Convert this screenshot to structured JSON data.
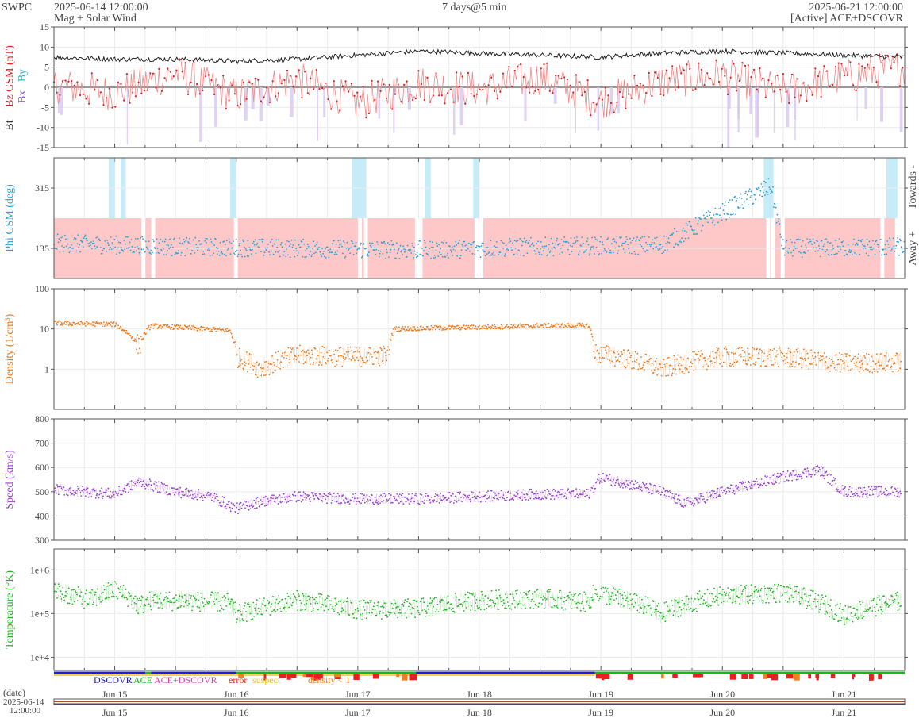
{
  "header": {
    "app": "SWPC",
    "start_time": "2025-06-14 12:00:00",
    "product": "Mag + Solar Wind",
    "range": "7 days@5 min",
    "end_time": "2025-06-21 12:00:00",
    "source": "[Active] ACE+DSCOVR"
  },
  "colors": {
    "bt": "#222222",
    "bz": "#e02020",
    "bx": "#8a4fc8",
    "by": "#22b8e0",
    "phi": "#2a9fd8",
    "phi_away_band": "#ffc8c8",
    "phi_towards_band": "#c6ecf8",
    "density": "#f07818",
    "speed": "#9a3fd0",
    "temperature": "#1fb81f",
    "dscovr": "#2020c8",
    "ace": "#18b818",
    "ace_dscovr": "#e040c0",
    "error": "#e82020",
    "suspect": "#f0c020",
    "density_lt_1": "#f08020"
  },
  "chart_data": [
    {
      "type": "line",
      "panel": "mag",
      "ylabel_parts": [
        "Bt",
        "Bz GSM (nT)",
        "Bx",
        "By"
      ],
      "ylim": [
        -15,
        15
      ],
      "yticks": [
        "15",
        "10",
        "5",
        "0",
        "-5",
        "-10",
        "-15"
      ],
      "grid": true,
      "series": [
        {
          "name": "Bt",
          "day": [
            0.0,
            0.5,
            1.0,
            1.5,
            2.0,
            2.5,
            3.0,
            3.5,
            4.0,
            4.5,
            5.0,
            5.5,
            6.0,
            6.5,
            7.0
          ],
          "values": [
            7.5,
            7.0,
            7.0,
            6.5,
            7.0,
            8.0,
            9.0,
            8.5,
            8.0,
            7.5,
            8.5,
            9.0,
            8.5,
            8.0,
            7.5
          ]
        },
        {
          "name": "Bz",
          "day": [
            0.0,
            0.5,
            1.0,
            1.5,
            2.0,
            2.5,
            3.0,
            3.5,
            4.0,
            4.5,
            5.0,
            5.5,
            6.0,
            6.5,
            7.0
          ],
          "values": [
            0.5,
            -1.5,
            3.5,
            -2.0,
            2.0,
            -4.0,
            1.0,
            -0.5,
            2.5,
            -3.5,
            1.5,
            3.0,
            -1.0,
            2.5,
            5.0
          ]
        }
      ]
    },
    {
      "type": "scatter",
      "panel": "phi",
      "ylabel": "Phi GSM (deg)",
      "ylim": [
        45,
        405
      ],
      "yticks": [
        "315",
        "135"
      ],
      "side_labels": [
        "Towards -",
        "Away +"
      ],
      "series": [
        {
          "name": "Phi",
          "day": [
            0.0,
            1.0,
            2.0,
            3.0,
            4.0,
            5.0,
            5.9,
            6.0,
            7.0
          ],
          "values": [
            150,
            140,
            135,
            130,
            140,
            145,
            320,
            135,
            140
          ]
        }
      ]
    },
    {
      "type": "scatter",
      "panel": "density",
      "ylabel": "Density (1/cm³)",
      "scale": "log",
      "ylim": [
        0.1,
        100
      ],
      "yticks": [
        "100",
        "10",
        "1"
      ],
      "series": [
        {
          "name": "Density",
          "day": [
            0.0,
            0.5,
            0.7,
            0.8,
            1.0,
            1.45,
            1.5,
            1.7,
            2.0,
            2.5,
            2.75,
            2.8,
            3.5,
            4.0,
            4.4,
            4.45,
            5.0,
            5.5,
            6.0,
            6.5,
            7.0
          ],
          "values": [
            14,
            13,
            3.5,
            12,
            11,
            9,
            2,
            1.0,
            2.2,
            2.0,
            2.2,
            10,
            11,
            12,
            12,
            2.5,
            1.0,
            2.0,
            2.0,
            1.4,
            1.5
          ]
        }
      ]
    },
    {
      "type": "scatter",
      "panel": "speed",
      "ylabel": "Speed (km/s)",
      "ylim": [
        300,
        800
      ],
      "yticks": [
        "800",
        "700",
        "600",
        "500",
        "400",
        "300"
      ],
      "series": [
        {
          "name": "Speed",
          "day": [
            0.0,
            0.5,
            0.7,
            1.0,
            1.3,
            1.5,
            1.7,
            2.0,
            2.5,
            3.0,
            3.5,
            4.0,
            4.4,
            4.5,
            5.0,
            5.2,
            5.5,
            6.0,
            6.3,
            6.5,
            7.0
          ],
          "values": [
            510,
            490,
            540,
            500,
            480,
            430,
            460,
            480,
            470,
            470,
            480,
            490,
            490,
            560,
            500,
            450,
            500,
            560,
            590,
            500,
            500
          ]
        }
      ]
    },
    {
      "type": "scatter",
      "panel": "temperature",
      "ylabel": "Temperature (°K)",
      "scale": "log",
      "ylim": [
        5000,
        3000000
      ],
      "yticks": [
        "1e+6",
        "1e+5",
        "1e+4"
      ],
      "series": [
        {
          "name": "Temperature",
          "day": [
            0.0,
            0.3,
            0.5,
            0.7,
            0.8,
            1.45,
            1.5,
            2.0,
            2.5,
            3.0,
            3.5,
            4.0,
            4.4,
            4.45,
            5.0,
            5.5,
            6.0,
            6.5,
            7.0
          ],
          "values": [
            320000,
            200000,
            350000,
            150000,
            200000,
            180000,
            90000,
            200000,
            120000,
            130000,
            200000,
            220000,
            180000,
            300000,
            100000,
            250000,
            300000,
            90000,
            200000
          ]
        }
      ]
    }
  ],
  "source_legend": [
    "DSCOVR",
    "ACE",
    "ACE+DSCOVR",
    "error",
    "suspect",
    "density < 1"
  ],
  "x_ticks": [
    "Jun 15",
    "Jun 16",
    "Jun 17",
    "Jun 18",
    "Jun 19",
    "Jun 20",
    "Jun 21"
  ],
  "x_axis_label": "(date)",
  "x_origin_label": [
    "2025-06-14",
    "12:00:00"
  ]
}
